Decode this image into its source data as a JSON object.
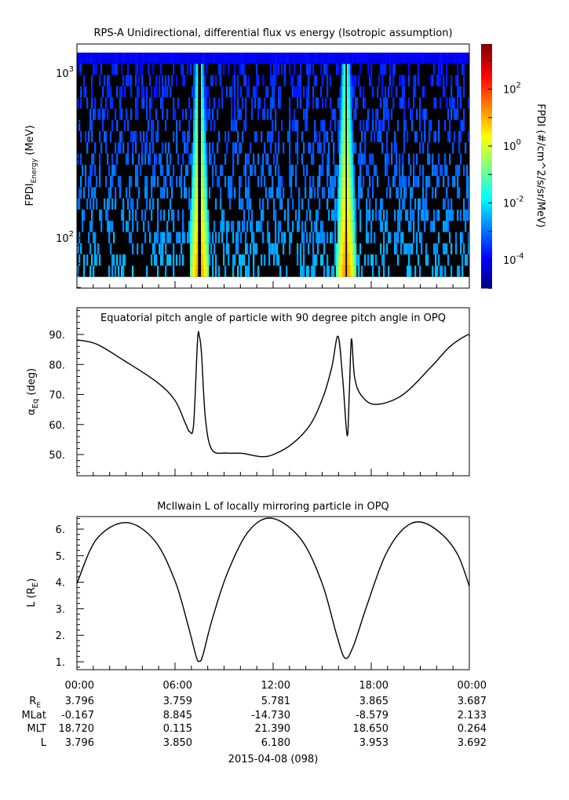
{
  "chart_data": [
    {
      "type": "heatmap",
      "title": "RPS-A Unidirectional, differential flux vs energy (Isotropic assumption)",
      "ylabel_main": "FPDI",
      "ylabel_sub": "Energy",
      "ylabel_unit": " (MeV)",
      "x_range_hours": [
        0,
        24
      ],
      "y_range": [
        50,
        1500
      ],
      "y_scale": "log",
      "y_ticks": [
        100,
        1000
      ],
      "y_tick_labels": [
        "10^2",
        "10^3"
      ],
      "y_data_range": [
        58,
        1330
      ],
      "colorbar": {
        "label": "FPDI (#/cm^2/s/sr/MeV)",
        "scale": "log",
        "range": [
          1e-05,
          3700
        ],
        "ticks": [
          0.0001,
          0.01,
          1,
          100
        ],
        "tick_labels": [
          "10^-4",
          "10^-2",
          "10^0",
          "10^2"
        ],
        "colormap": "rainbow (dark blue → red)",
        "no_data_color": "#000000"
      }
    },
    {
      "type": "line",
      "title": "Equatorial pitch angle of particle with 90 degree pitch angle in OPQ",
      "ylabel_main": "α",
      "ylabel_sub": "Eq",
      "ylabel_unit": " (deg)",
      "y_range": [
        43,
        99
      ],
      "y_ticks": [
        50,
        60,
        70,
        80,
        90
      ],
      "y_tick_labels": [
        "50.",
        "60.",
        "70.",
        "80.",
        "90."
      ],
      "x": [
        0,
        1.2,
        2.8,
        4.9,
        6.0,
        6.65,
        6.9,
        7.14,
        7.38,
        7.49,
        7.62,
        7.86,
        8.26,
        9.2,
        10.1,
        11.3,
        12.1,
        13.2,
        14.3,
        15.1,
        15.6,
        15.97,
        16.26,
        16.53,
        16.66,
        16.79,
        16.98,
        17.38,
        18.26,
        19.9,
        21.7,
        22.8,
        23.86,
        24
      ],
      "y": [
        88.2,
        86.8,
        81.6,
        74.1,
        68,
        60.2,
        57.6,
        60.2,
        88.2,
        89.4,
        83.7,
        62,
        51.6,
        50.5,
        50.4,
        49.3,
        50.2,
        53.7,
        60.2,
        69.8,
        79.4,
        89.4,
        75,
        56.3,
        70.7,
        88.5,
        75.9,
        69.8,
        66.7,
        69.8,
        79.4,
        85.9,
        89.8,
        89.4
      ]
    },
    {
      "type": "line",
      "title": "McIlwain L of locally mirroring particle in OPQ",
      "ylabel_main": "L (R",
      "ylabel_sub": "E",
      "ylabel_unit": ")",
      "y_range": [
        0.7,
        6.47
      ],
      "y_ticks": [
        1,
        2,
        3,
        4,
        5,
        6
      ],
      "y_tick_labels": [
        "1.",
        "2.",
        "3.",
        "4.",
        "5.",
        "6."
      ],
      "x": [
        0,
        1.2,
        3.0,
        4.74,
        6.0,
        6.8,
        7.3,
        7.49,
        7.7,
        8.26,
        9.2,
        10.5,
        11.94,
        13.7,
        15.0,
        15.9,
        16.4,
        16.9,
        17.7,
        18.8,
        19.9,
        21.0,
        22.3,
        23.3,
        24
      ],
      "y": [
        3.95,
        5.62,
        6.25,
        5.58,
        4.05,
        2.37,
        1.19,
        1.02,
        1.24,
        2.57,
        4.34,
        5.92,
        6.41,
        5.62,
        3.95,
        1.98,
        1.14,
        1.58,
        3.06,
        4.93,
        5.97,
        6.27,
        5.82,
        5.03,
        3.85
      ]
    }
  ],
  "x_axis": {
    "tick_hours": [
      0,
      6,
      12,
      18,
      24
    ],
    "tick_labels": [
      "00:00",
      "06:00",
      "12:00",
      "18:00",
      "00:00"
    ],
    "date_label": "2015-04-08 (098)"
  },
  "ephemeris": [
    {
      "label": "R",
      "sub": "E",
      "values": [
        "3.796",
        "3.759",
        "5.781",
        "3.865",
        "3.687"
      ]
    },
    {
      "label": "MLat",
      "sub": "",
      "values": [
        "-0.167",
        "8.845",
        "-14.730",
        "-8.579",
        "2.133"
      ]
    },
    {
      "label": "MLT",
      "sub": "",
      "values": [
        "18.720",
        "0.115",
        "21.390",
        "18.650",
        "0.264"
      ]
    },
    {
      "label": "L",
      "sub": "",
      "values": [
        "3.796",
        "3.850",
        "6.180",
        "3.953",
        "3.692"
      ]
    }
  ]
}
